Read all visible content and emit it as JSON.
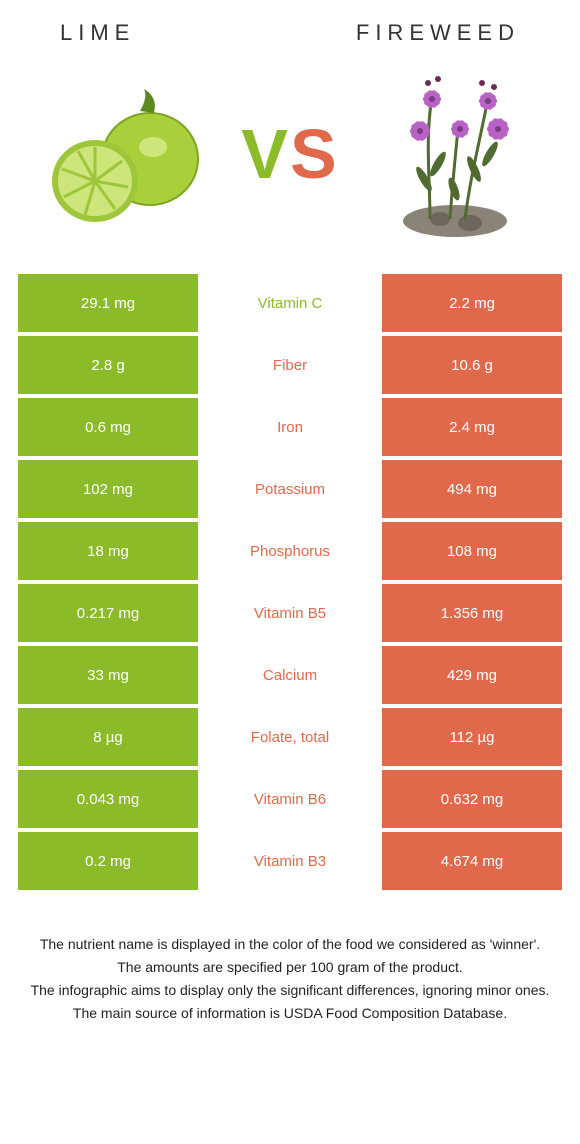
{
  "header": {
    "left": "Lime",
    "right": "Fireweed"
  },
  "vs": {
    "v": "V",
    "s": "S"
  },
  "colors": {
    "lime": "#8bbb28",
    "fireweed": "#e0694b",
    "bg": "#ffffff"
  },
  "rows": [
    {
      "left": "29.1 mg",
      "label": "Vitamin C",
      "winner": "lime",
      "right": "2.2 mg"
    },
    {
      "left": "2.8 g",
      "label": "Fiber",
      "winner": "fire",
      "right": "10.6 g"
    },
    {
      "left": "0.6 mg",
      "label": "Iron",
      "winner": "fire",
      "right": "2.4 mg"
    },
    {
      "left": "102 mg",
      "label": "Potassium",
      "winner": "fire",
      "right": "494 mg"
    },
    {
      "left": "18 mg",
      "label": "Phosphorus",
      "winner": "fire",
      "right": "108 mg"
    },
    {
      "left": "0.217 mg",
      "label": "Vitamin B5",
      "winner": "fire",
      "right": "1.356 mg"
    },
    {
      "left": "33 mg",
      "label": "Calcium",
      "winner": "fire",
      "right": "429 mg"
    },
    {
      "left": "8 µg",
      "label": "Folate, total",
      "winner": "fire",
      "right": "112 µg"
    },
    {
      "left": "0.043 mg",
      "label": "Vitamin B6",
      "winner": "fire",
      "right": "0.632 mg"
    },
    {
      "left": "0.2 mg",
      "label": "Vitamin B3",
      "winner": "fire",
      "right": "4.674 mg"
    }
  ],
  "footnotes": [
    "The nutrient name is displayed in the color of the food we considered as 'winner'.",
    "The amounts are specified per 100 gram of the product.",
    "The infographic aims to display only the significant differences, ignoring minor ones.",
    "The main source of information is USDA Food Composition Database."
  ]
}
